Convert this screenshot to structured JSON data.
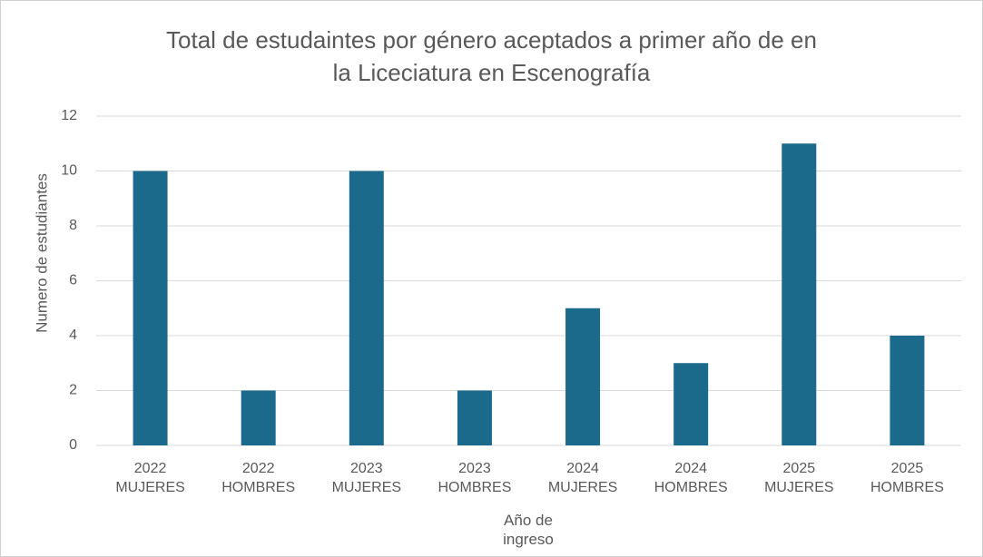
{
  "chart_data": {
    "type": "bar",
    "title": [
      "Total de estudaintes por género aceptados a primer año de en",
      "la Liceciatura en Escenografía"
    ],
    "x_label": "Año de ingreso",
    "y_label": "Numero de estudiantes",
    "categories": [
      "2022 MUJERES",
      "2022 HOMBRES",
      "2023 MUJERES",
      "2023 HOMBRES",
      "2024 MUJERES",
      "2024 HOMBRES",
      "2025 MUJERES",
      "2025 HOMBRES"
    ],
    "values": [
      10,
      2,
      10,
      2,
      5,
      3,
      11,
      4
    ],
    "color": "#1b6a8c",
    "ylim": [
      0,
      12
    ],
    "yticks": [
      0,
      2,
      4,
      6,
      8,
      10,
      12
    ],
    "grid": true
  }
}
